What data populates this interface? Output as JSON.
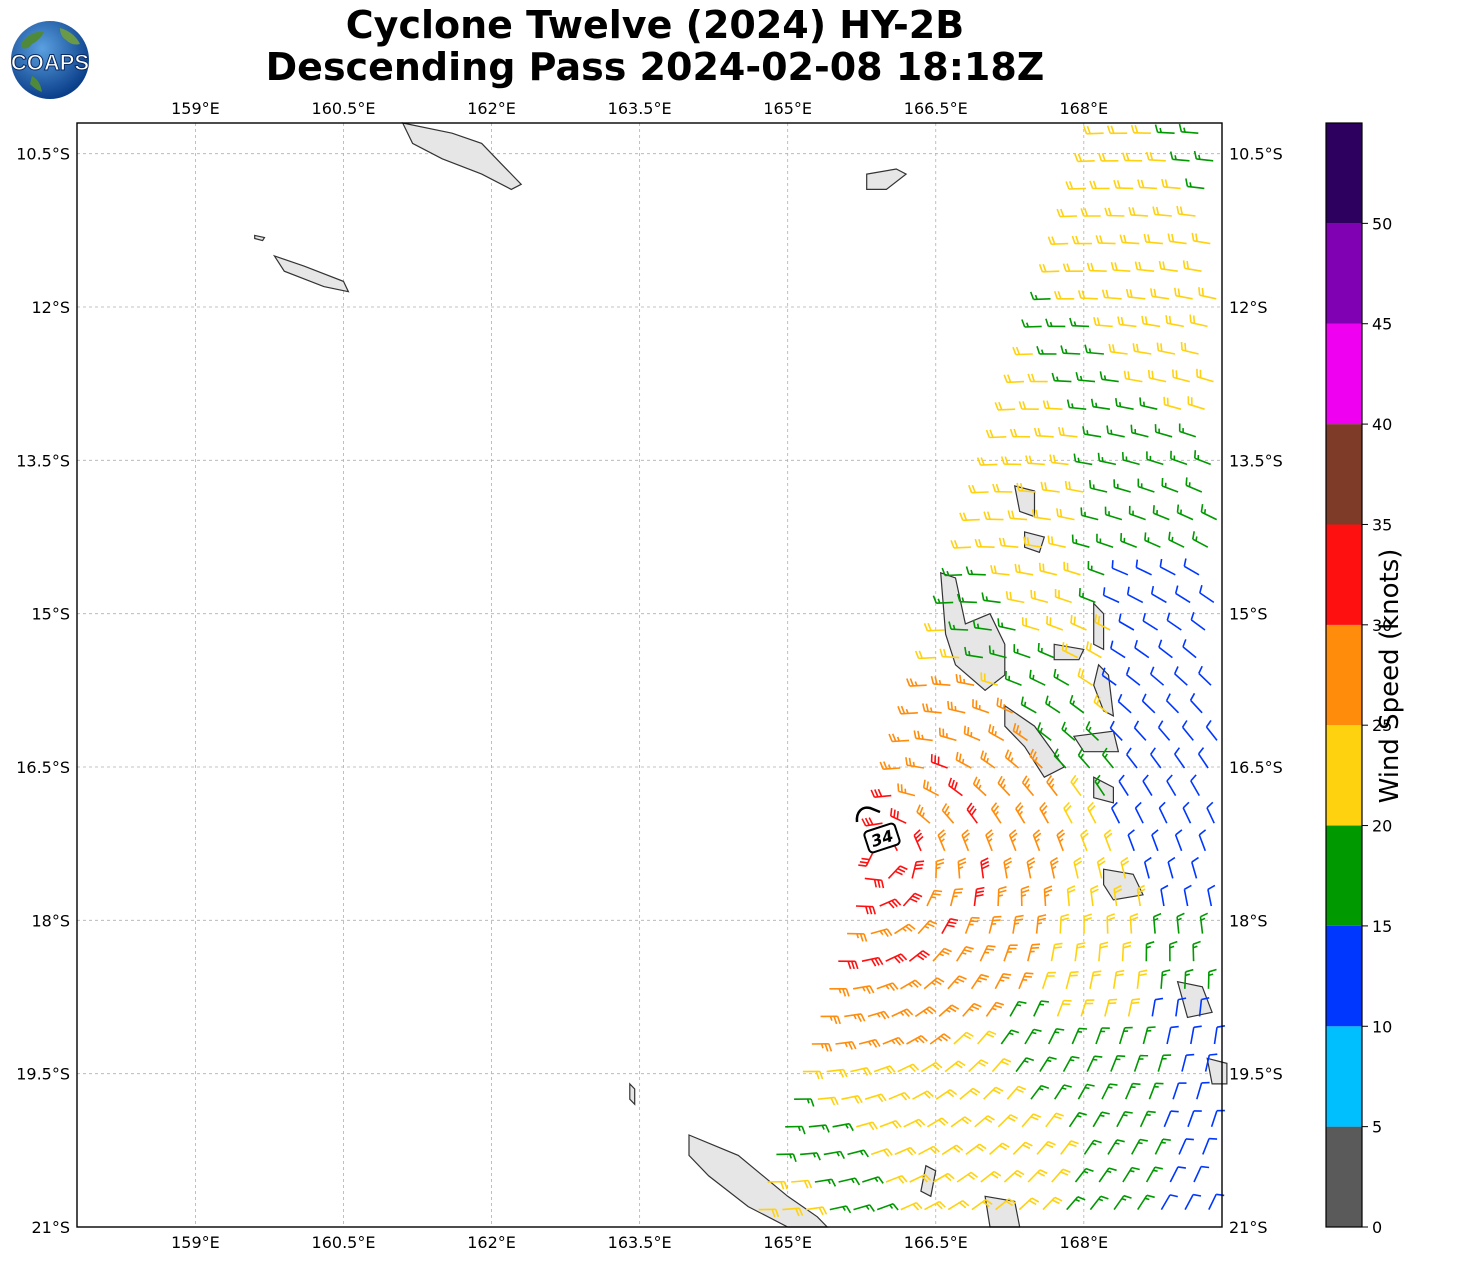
{
  "title": {
    "line1": "Cyclone Twelve (2024) HY-2B",
    "line2": "Descending Pass 2024-02-08 18:18Z"
  },
  "logo": {
    "text": "COAPS",
    "icon": "coaps-globe-logo"
  },
  "map": {
    "lon_range": [
      157.8,
      169.4
    ],
    "lat_range": [
      -21.0,
      -10.2
    ],
    "lon_ticks": [
      "159°E",
      "160.5°E",
      "162°E",
      "163.5°E",
      "165°E",
      "166.5°E",
      "168°E"
    ],
    "lat_ticks": [
      "10.5°S",
      "12°S",
      "13.5°S",
      "15°S",
      "16.5°S",
      "18°S",
      "19.5°S",
      "21°S"
    ],
    "grid": "dashed",
    "wind_radius_label": "34"
  },
  "colorbar": {
    "label": "Wind Speed (knots)",
    "ticks": [
      "0",
      "5",
      "10",
      "15",
      "20",
      "25",
      "30",
      "35",
      "40",
      "45",
      "50"
    ],
    "bins": [
      {
        "from": 0,
        "to": 5,
        "color": "#5a5a5a"
      },
      {
        "from": 5,
        "to": 10,
        "color": "#00bfff"
      },
      {
        "from": 10,
        "to": 15,
        "color": "#0037ff"
      },
      {
        "from": 15,
        "to": 20,
        "color": "#009900"
      },
      {
        "from": 20,
        "to": 25,
        "color": "#ffd20f"
      },
      {
        "from": 25,
        "to": 30,
        "color": "#ff8c0a"
      },
      {
        "from": 30,
        "to": 35,
        "color": "#ff1010"
      },
      {
        "from": 35,
        "to": 40,
        "color": "#7d3b28"
      },
      {
        "from": 40,
        "to": 45,
        "color": "#f000f0"
      },
      {
        "from": 45,
        "to": 50,
        "color": "#8000b4"
      },
      {
        "from": 50,
        "to": 55,
        "color": "#2d0060"
      }
    ]
  }
}
